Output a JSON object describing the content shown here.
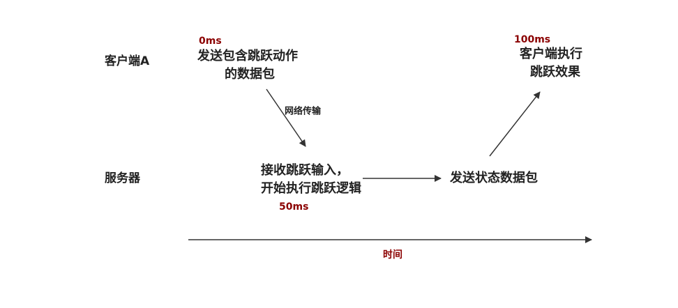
{
  "lanes": [
    "客户端A",
    "服务器"
  ],
  "events": [
    {
      "time": "0ms",
      "lines": [
        "发送包含跳跃动作",
        "的数据包"
      ]
    },
    {
      "time": "50ms",
      "lines": [
        "接收跳跃输入，",
        "开始执行跳跃逻辑"
      ]
    },
    {
      "lines": [
        "发送状态数据包"
      ]
    },
    {
      "time": "100ms",
      "lines": [
        "客户端执行",
        "跳跃效果"
      ]
    }
  ],
  "transfer_label": "网络传输",
  "axis_label": "时间"
}
